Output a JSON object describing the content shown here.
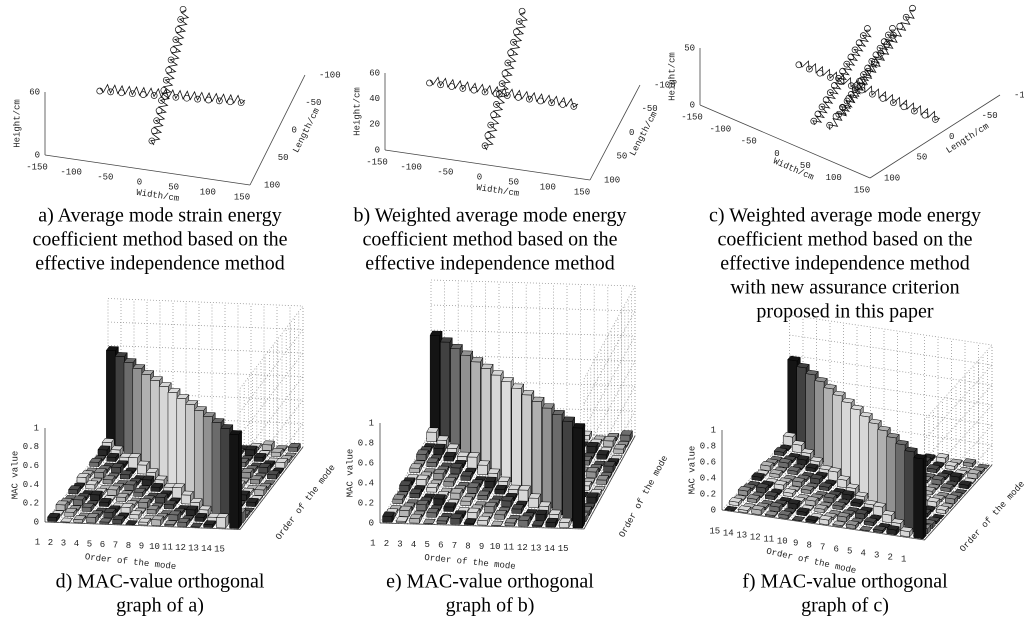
{
  "panels": [
    {
      "caption": [
        "a) Average mode strain energy",
        "coefficient method based on the",
        "effective independence method"
      ],
      "z_label": "Height/cm",
      "x_label": "Width/cm",
      "y_label": "Length/cm",
      "z_ticks": [
        "60",
        "0"
      ],
      "x_ticks": [
        "-150",
        "-100",
        "-50",
        "0",
        "50",
        "100",
        "150"
      ],
      "y_ticks": [
        "-100",
        "-50",
        "0",
        "50",
        "100"
      ]
    },
    {
      "caption": [
        "b) Weighted average mode energy",
        "coefficient method based on the",
        "effective independence method"
      ],
      "z_label": "Height/cm",
      "x_label": "Width/cm",
      "y_label": "Length/cm",
      "z_ticks": [
        "60",
        "40",
        "20",
        "0"
      ],
      "x_ticks": [
        "-150",
        "-100",
        "-50",
        "0",
        "50",
        "100",
        "150"
      ],
      "y_ticks": [
        "-100",
        "-50",
        "0",
        "50",
        "100"
      ]
    },
    {
      "caption": [
        "c) Weighted average mode energy",
        "coefficient method based on the",
        "effective independence method",
        "with new assurance criterion",
        "proposed in this paper"
      ],
      "z_label": "Height/cm",
      "x_label": "Width/cm",
      "y_label": "Length/cm",
      "z_ticks": [
        "50",
        "0"
      ],
      "x_ticks": [
        "-150",
        "-100",
        "-50",
        "0",
        "50",
        "100",
        "150"
      ],
      "y_ticks": [
        "-100",
        "-50",
        "0",
        "50",
        "100"
      ]
    },
    {
      "caption": [
        "d) MAC-value orthogonal",
        "graph of a)"
      ],
      "z_label": "MAC value",
      "x_label": "Order of the mode",
      "y_label": "Order of the mode",
      "z_ticks": [
        "1",
        "0.8",
        "0.6",
        "0.4",
        "0.2",
        "0"
      ],
      "x_ticks": [
        "1",
        "2",
        "3",
        "4",
        "5",
        "6",
        "7",
        "8",
        "9",
        "10",
        "11",
        "12",
        "13",
        "14",
        "15"
      ]
    },
    {
      "caption": [
        "e) MAC-value orthogonal",
        "graph of b)"
      ],
      "z_label": "MAC value",
      "x_label": "Order of the mode",
      "y_label": "Order of the mode",
      "z_ticks": [
        "1",
        "0.8",
        "0.6",
        "0.4",
        "0.2",
        "0"
      ],
      "x_ticks": [
        "1",
        "2",
        "3",
        "4",
        "5",
        "6",
        "7",
        "8",
        "9",
        "10",
        "11",
        "12",
        "13",
        "14",
        "15"
      ]
    },
    {
      "caption": [
        "f) MAC-value orthogonal",
        "graph of c)"
      ],
      "z_label": "MAC value",
      "x_label": "Order of the mode",
      "y_label": "Order of the mode",
      "z_ticks": [
        "1",
        "0.8",
        "0.6",
        "0.4",
        "0.2",
        "0"
      ],
      "x_ticks": [
        "15",
        "14",
        "13",
        "12",
        "11",
        "10",
        "9",
        "8",
        "7",
        "6",
        "5",
        "4",
        "3",
        "2",
        "1"
      ]
    }
  ]
}
